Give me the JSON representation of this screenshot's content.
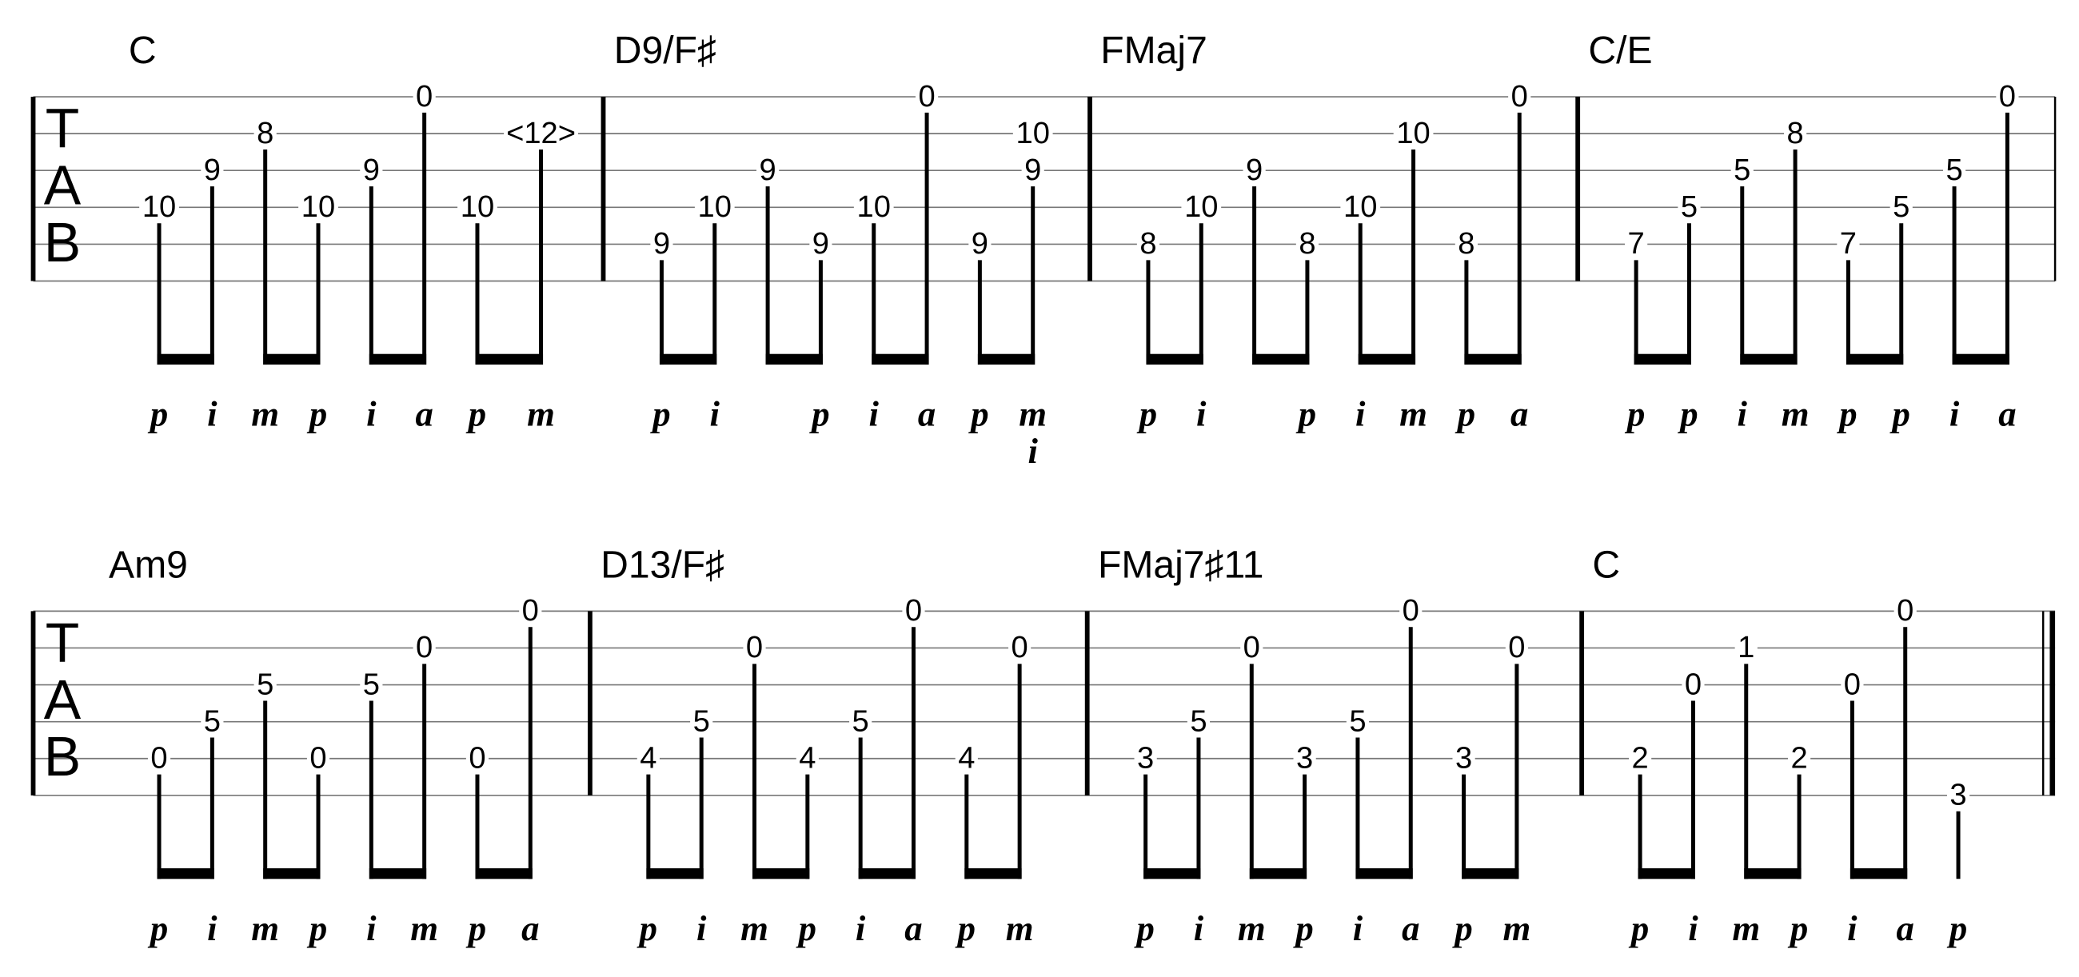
{
  "clef": [
    "T",
    "A",
    "B"
  ],
  "systems": [
    {
      "measures": [
        {
          "chord": "C",
          "notes": [
            {
              "frets": [
                {
                  "string": 4,
                  "fret": "10"
                }
              ],
              "finger": "p"
            },
            {
              "frets": [
                {
                  "string": 3,
                  "fret": "9"
                }
              ],
              "finger": "i"
            },
            {
              "frets": [
                {
                  "string": 2,
                  "fret": "8"
                }
              ],
              "finger": "m"
            },
            {
              "frets": [
                {
                  "string": 4,
                  "fret": "10"
                }
              ],
              "finger": "p"
            },
            {
              "frets": [
                {
                  "string": 3,
                  "fret": "9"
                }
              ],
              "finger": "i"
            },
            {
              "frets": [
                {
                  "string": 1,
                  "fret": "0"
                }
              ],
              "finger": "a"
            },
            {
              "frets": [
                {
                  "string": 4,
                  "fret": "10"
                }
              ],
              "finger": "p"
            },
            {
              "frets": [
                {
                  "string": 2,
                  "fret": "<12>"
                }
              ],
              "finger": "m"
            }
          ]
        },
        {
          "chord": "D9/F♯",
          "notes": [
            {
              "frets": [
                {
                  "string": 5,
                  "fret": "9"
                }
              ],
              "finger": "p"
            },
            {
              "frets": [
                {
                  "string": 4,
                  "fret": "10"
                }
              ],
              "finger": "i"
            },
            {
              "frets": [
                {
                  "string": 3,
                  "fret": "9"
                }
              ],
              "finger": null
            },
            {
              "frets": [
                {
                  "string": 5,
                  "fret": "9"
                }
              ],
              "finger": "p"
            },
            {
              "frets": [
                {
                  "string": 4,
                  "fret": "10"
                }
              ],
              "finger": "i"
            },
            {
              "frets": [
                {
                  "string": 1,
                  "fret": "0"
                }
              ],
              "finger": "a"
            },
            {
              "frets": [
                {
                  "string": 5,
                  "fret": "9"
                }
              ],
              "finger": "p"
            },
            {
              "frets": [
                {
                  "string": 2,
                  "fret": "10"
                },
                {
                  "string": 3,
                  "fret": "9"
                }
              ],
              "finger": [
                "m",
                "i"
              ]
            }
          ]
        },
        {
          "chord": "FMaj7",
          "notes": [
            {
              "frets": [
                {
                  "string": 5,
                  "fret": "8"
                }
              ],
              "finger": "p"
            },
            {
              "frets": [
                {
                  "string": 4,
                  "fret": "10"
                }
              ],
              "finger": "i"
            },
            {
              "frets": [
                {
                  "string": 3,
                  "fret": "9"
                }
              ],
              "finger": null
            },
            {
              "frets": [
                {
                  "string": 5,
                  "fret": "8"
                }
              ],
              "finger": "p"
            },
            {
              "frets": [
                {
                  "string": 4,
                  "fret": "10"
                }
              ],
              "finger": "i"
            },
            {
              "frets": [
                {
                  "string": 2,
                  "fret": "10"
                }
              ],
              "finger": "m"
            },
            {
              "frets": [
                {
                  "string": 5,
                  "fret": "8"
                }
              ],
              "finger": "p"
            },
            {
              "frets": [
                {
                  "string": 1,
                  "fret": "0"
                }
              ],
              "finger": "a"
            }
          ]
        },
        {
          "chord": "C/E",
          "notes": [
            {
              "frets": [
                {
                  "string": 5,
                  "fret": "7"
                }
              ],
              "finger": "p"
            },
            {
              "frets": [
                {
                  "string": 4,
                  "fret": "5"
                }
              ],
              "finger": "p"
            },
            {
              "frets": [
                {
                  "string": 3,
                  "fret": "5"
                }
              ],
              "finger": "i"
            },
            {
              "frets": [
                {
                  "string": 2,
                  "fret": "8"
                }
              ],
              "finger": "m"
            },
            {
              "frets": [
                {
                  "string": 5,
                  "fret": "7"
                }
              ],
              "finger": "p"
            },
            {
              "frets": [
                {
                  "string": 4,
                  "fret": "5"
                }
              ],
              "finger": "p"
            },
            {
              "frets": [
                {
                  "string": 3,
                  "fret": "5"
                }
              ],
              "finger": "i"
            },
            {
              "frets": [
                {
                  "string": 1,
                  "fret": "0"
                }
              ],
              "finger": "a"
            }
          ]
        }
      ]
    },
    {
      "measures": [
        {
          "chord": "Am9",
          "notes": [
            {
              "frets": [
                {
                  "string": 5,
                  "fret": "0"
                }
              ],
              "finger": "p"
            },
            {
              "frets": [
                {
                  "string": 4,
                  "fret": "5"
                }
              ],
              "finger": "i"
            },
            {
              "frets": [
                {
                  "string": 3,
                  "fret": "5"
                }
              ],
              "finger": "m"
            },
            {
              "frets": [
                {
                  "string": 5,
                  "fret": "0"
                }
              ],
              "finger": "p"
            },
            {
              "frets": [
                {
                  "string": 3,
                  "fret": "5"
                }
              ],
              "finger": "i"
            },
            {
              "frets": [
                {
                  "string": 2,
                  "fret": "0"
                }
              ],
              "finger": "m"
            },
            {
              "frets": [
                {
                  "string": 5,
                  "fret": "0"
                }
              ],
              "finger": "p"
            },
            {
              "frets": [
                {
                  "string": 1,
                  "fret": "0"
                }
              ],
              "finger": "a"
            }
          ]
        },
        {
          "chord": "D13/F♯",
          "notes": [
            {
              "frets": [
                {
                  "string": 5,
                  "fret": "4"
                }
              ],
              "finger": "p"
            },
            {
              "frets": [
                {
                  "string": 4,
                  "fret": "5"
                }
              ],
              "finger": "i"
            },
            {
              "frets": [
                {
                  "string": 2,
                  "fret": "0"
                }
              ],
              "finger": "m"
            },
            {
              "frets": [
                {
                  "string": 5,
                  "fret": "4"
                }
              ],
              "finger": "p"
            },
            {
              "frets": [
                {
                  "string": 4,
                  "fret": "5"
                }
              ],
              "finger": "i"
            },
            {
              "frets": [
                {
                  "string": 1,
                  "fret": "0"
                }
              ],
              "finger": "a"
            },
            {
              "frets": [
                {
                  "string": 5,
                  "fret": "4"
                }
              ],
              "finger": "p"
            },
            {
              "frets": [
                {
                  "string": 2,
                  "fret": "0"
                }
              ],
              "finger": "m"
            }
          ]
        },
        {
          "chord": "FMaj7♯11",
          "notes": [
            {
              "frets": [
                {
                  "string": 5,
                  "fret": "3"
                }
              ],
              "finger": "p"
            },
            {
              "frets": [
                {
                  "string": 4,
                  "fret": "5"
                }
              ],
              "finger": "i"
            },
            {
              "frets": [
                {
                  "string": 2,
                  "fret": "0"
                }
              ],
              "finger": "m"
            },
            {
              "frets": [
                {
                  "string": 5,
                  "fret": "3"
                }
              ],
              "finger": "p"
            },
            {
              "frets": [
                {
                  "string": 4,
                  "fret": "5"
                }
              ],
              "finger": "i"
            },
            {
              "frets": [
                {
                  "string": 1,
                  "fret": "0"
                }
              ],
              "finger": "a"
            },
            {
              "frets": [
                {
                  "string": 5,
                  "fret": "3"
                }
              ],
              "finger": "p"
            },
            {
              "frets": [
                {
                  "string": 2,
                  "fret": "0"
                }
              ],
              "finger": "m"
            }
          ]
        },
        {
          "chord": "C",
          "notes": [
            {
              "frets": [
                {
                  "string": 5,
                  "fret": "2"
                }
              ],
              "finger": "p"
            },
            {
              "frets": [
                {
                  "string": 3,
                  "fret": "0"
                }
              ],
              "finger": "i"
            },
            {
              "frets": [
                {
                  "string": 2,
                  "fret": "1"
                }
              ],
              "finger": "m"
            },
            {
              "frets": [
                {
                  "string": 5,
                  "fret": "2"
                }
              ],
              "finger": "p"
            },
            {
              "frets": [
                {
                  "string": 3,
                  "fret": "0"
                }
              ],
              "finger": "i"
            },
            {
              "frets": [
                {
                  "string": 1,
                  "fret": "0"
                }
              ],
              "finger": "a"
            },
            {
              "frets": [
                {
                  "string": 6,
                  "fret": "3"
                }
              ],
              "finger": "p"
            }
          ]
        }
      ]
    }
  ]
}
